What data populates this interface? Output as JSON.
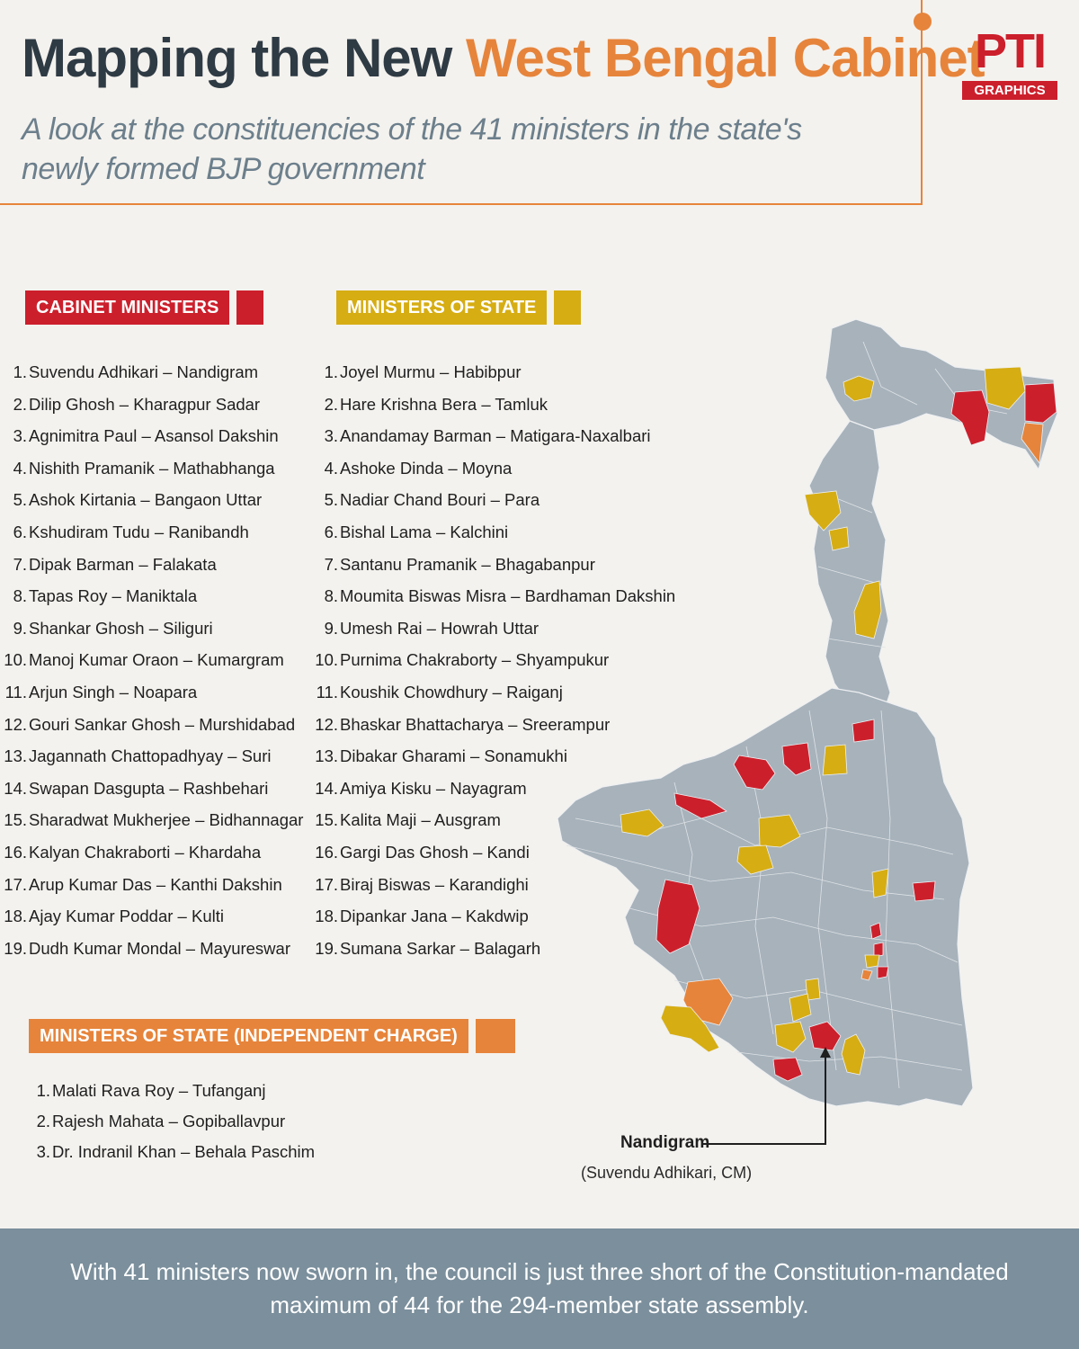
{
  "header": {
    "title_part1": "Mapping the New ",
    "title_part2": "West Bengal Cabinet",
    "subtitle": "A look at the constituencies of the 41 ministers in the state's newly formed BJP government"
  },
  "logo": {
    "mark": "PTI",
    "badge": "GRAPHICS",
    "icon": "pti-logo"
  },
  "colors": {
    "accent": "#e6843b",
    "cabinet": "#cc1f2c",
    "state": "#d6ad13",
    "independent": "#e6843b",
    "map_base": "#a7b2bb",
    "footer": "#7b8f9c"
  },
  "cabinet": {
    "heading": "CABINET MINISTERS",
    "items": [
      {
        "num": "1.",
        "text": "Suvendu Adhikari – Nandigram"
      },
      {
        "num": "2.",
        "text": "Dilip Ghosh – Kharagpur Sadar"
      },
      {
        "num": "3.",
        "text": "Agnimitra Paul – Asansol Dakshin"
      },
      {
        "num": "4.",
        "text": "Nishith Pramanik – Mathabhanga"
      },
      {
        "num": "5.",
        "text": "Ashok Kirtania – Bangaon Uttar"
      },
      {
        "num": "6.",
        "text": "Kshudiram Tudu – Ranibandh"
      },
      {
        "num": "7.",
        "text": "Dipak Barman – Falakata"
      },
      {
        "num": "8.",
        "text": "Tapas Roy – Maniktala"
      },
      {
        "num": "9.",
        "text": "Shankar Ghosh – Siliguri"
      },
      {
        "num": "10.",
        "text": "Manoj Kumar Oraon – Kumargram"
      },
      {
        "num": "11.",
        "text": "Arjun Singh – Noapara"
      },
      {
        "num": "12.",
        "text": "Gouri Sankar Ghosh – Murshidabad"
      },
      {
        "num": "13.",
        "text": "Jagannath Chattopadhyay – Suri"
      },
      {
        "num": "14.",
        "text": "Swapan Dasgupta – Rashbehari"
      },
      {
        "num": "15.",
        "text": "Sharadwat Mukherjee – Bidhannagar"
      },
      {
        "num": "16.",
        "text": "Kalyan Chakraborti – Khardaha"
      },
      {
        "num": "17.",
        "text": "Arup Kumar Das – Kanthi Dakshin"
      },
      {
        "num": "18.",
        "text": "Ajay Kumar Poddar – Kulti"
      },
      {
        "num": "19.",
        "text": "Dudh Kumar Mondal – Mayureswar"
      }
    ]
  },
  "state": {
    "heading": "MINISTERS OF STATE",
    "items": [
      {
        "num": "1.",
        "text": "Joyel Murmu – Habibpur"
      },
      {
        "num": "2.",
        "text": "Hare Krishna Bera – Tamluk"
      },
      {
        "num": "3.",
        "text": "Anandamay Barman – Matigara-Naxalbari"
      },
      {
        "num": "4.",
        "text": "Ashoke Dinda – Moyna"
      },
      {
        "num": "5.",
        "text": "Nadiar Chand Bouri – Para"
      },
      {
        "num": "6.",
        "text": "Bishal Lama – Kalchini"
      },
      {
        "num": "7.",
        "text": "Santanu Pramanik – Bhagabanpur"
      },
      {
        "num": "8.",
        "text": "Moumita Biswas Misra – Bardhaman Dakshin"
      },
      {
        "num": "9.",
        "text": "Umesh Rai – Howrah Uttar"
      },
      {
        "num": "10.",
        "text": "Purnima Chakraborty – Shyampukur"
      },
      {
        "num": "11.",
        "text": "Koushik Chowdhury – Raiganj"
      },
      {
        "num": "12.",
        "text": "Bhaskar Bhattacharya – Sreerampur"
      },
      {
        "num": "13.",
        "text": "Dibakar Gharami – Sonamukhi"
      },
      {
        "num": "14.",
        "text": "Amiya Kisku – Nayagram"
      },
      {
        "num": "15.",
        "text": "Kalita Maji – Ausgram"
      },
      {
        "num": "16.",
        "text": "Gargi Das Ghosh – Kandi"
      },
      {
        "num": "17.",
        "text": "Biraj Biswas – Karandighi"
      },
      {
        "num": "18.",
        "text": "Dipankar Jana – Kakdwip"
      },
      {
        "num": "19.",
        "text": "Sumana Sarkar – Balagarh"
      }
    ]
  },
  "independent": {
    "heading": "MINISTERS OF STATE (INDEPENDENT CHARGE)",
    "items": [
      {
        "num": "1.",
        "text": "Malati Rava Roy – Tufanganj"
      },
      {
        "num": "2.",
        "text": "Rajesh Mahata – Gopiballavpur"
      },
      {
        "num": "3.",
        "text": "Dr. Indranil Khan – Behala Paschim"
      }
    ]
  },
  "map": {
    "callout_name": "Nandigram",
    "callout_sub": "(Suvendu Adhikari, CM)"
  },
  "footer": {
    "text": "With 41 ministers now sworn in, the council is just three short of the Constitution-mandated maximum of 44 for the 294-member state assembly."
  }
}
